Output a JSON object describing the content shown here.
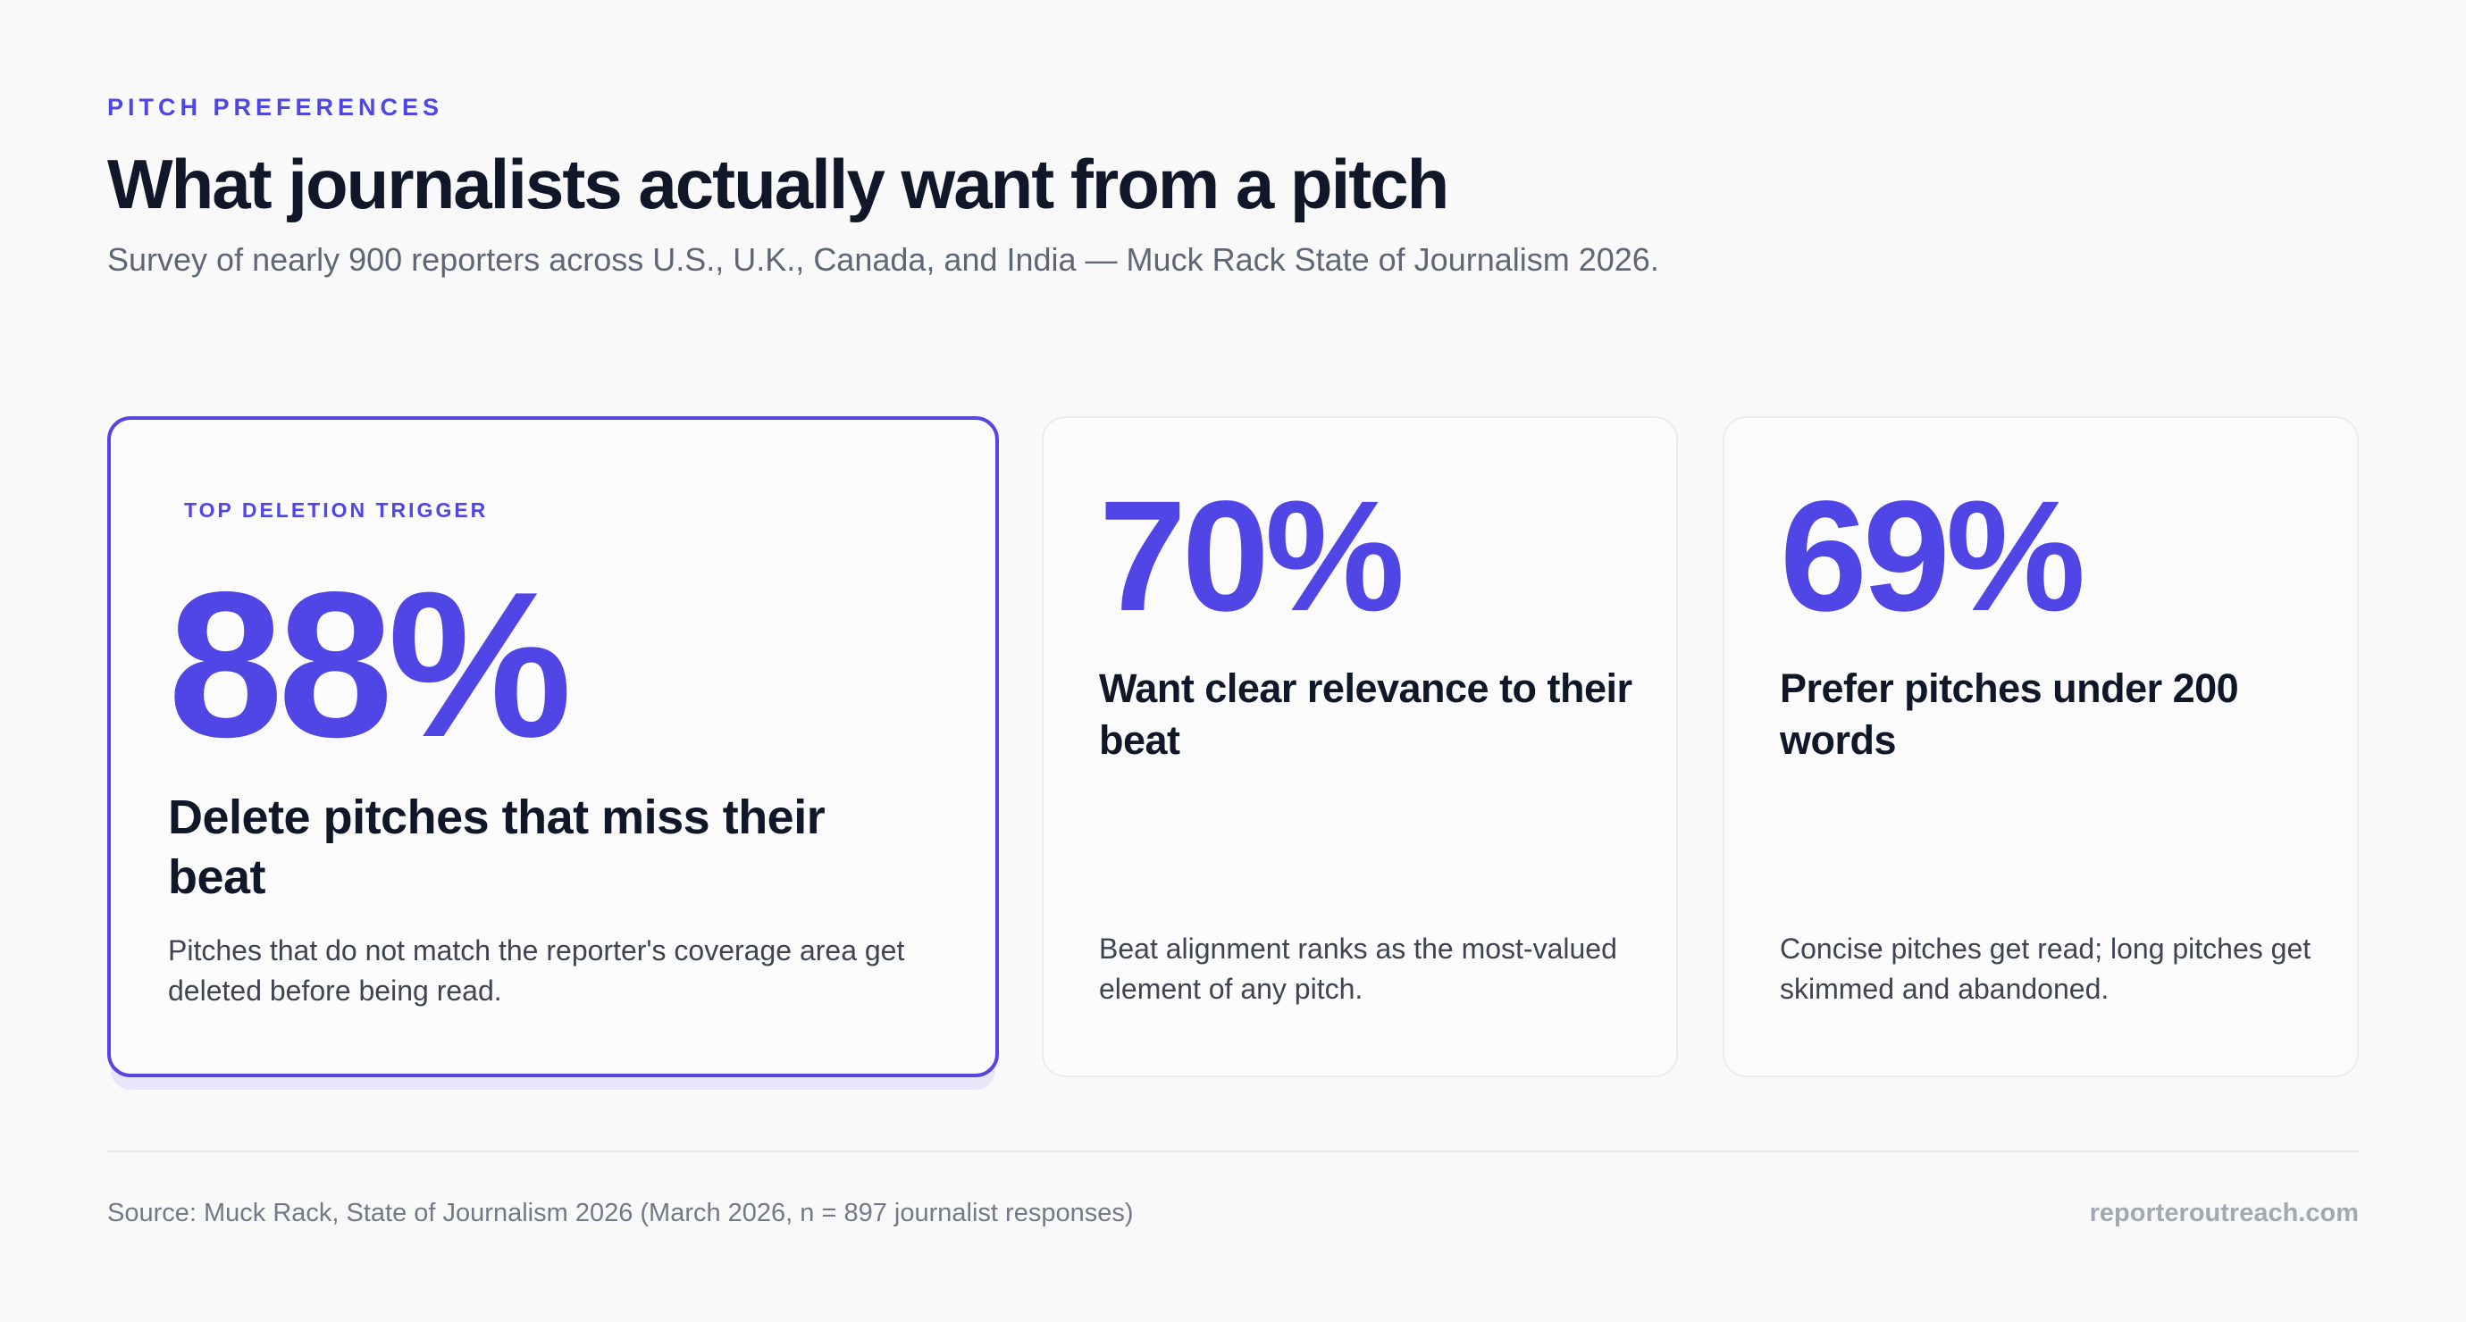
{
  "header": {
    "eyebrow": "PITCH PREFERENCES",
    "title": "What journalists actually want from a pitch",
    "subtitle": "Survey of nearly 900 reporters across U.S., U.K., Canada, and India — Muck Rack State of Journalism 2026."
  },
  "cards": [
    {
      "kicker": "TOP DELETION TRIGGER",
      "stat": "88%",
      "headline": "Delete pitches that miss their beat",
      "description": "Pitches that do not match the reporter's coverage area get deleted before being read."
    },
    {
      "stat": "70%",
      "headline": "Want clear relevance to their beat",
      "description": "Beat alignment ranks as the most-valued element of any pitch."
    },
    {
      "stat": "69%",
      "headline": "Prefer pitches under 200 words",
      "description": "Concise pitches get read; long pitches get skimmed and abandoned."
    }
  ],
  "footer": {
    "source": "Source: Muck Rack, State of Journalism 2026 (March 2026, n = 897 journalist responses)",
    "brand": "reporteroutreach.com"
  },
  "colors": {
    "accent": "#5046e5",
    "title": "#0f1729",
    "muted": "#5f6675",
    "background": "#f9f9fa",
    "brand": "#a4a8b3"
  }
}
